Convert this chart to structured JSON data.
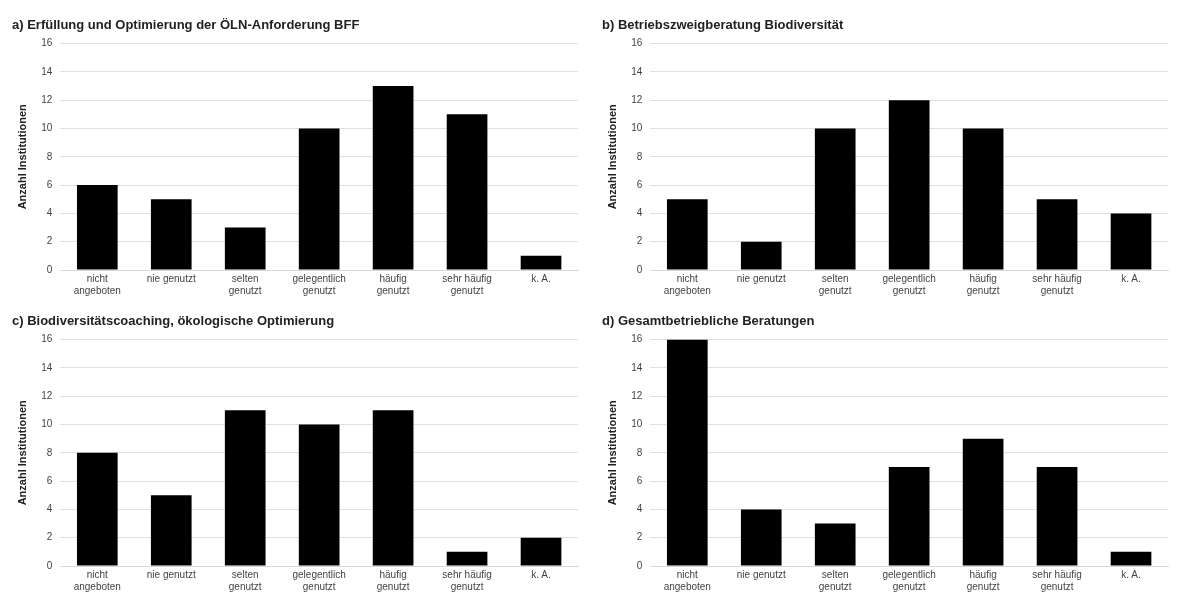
{
  "chart_data": [
    {
      "type": "bar",
      "title": "a) Erfüllung und Optimierung der ÖLN-Anforderung BFF",
      "ylabel": "Anzahl Institutionen",
      "categories": [
        "nicht angeboten",
        "nie genutzt",
        "selten genutzt",
        "gelegentlich genutzt",
        "häufig genutzt",
        "sehr häufig genutzt",
        "k. A."
      ],
      "values": [
        6,
        5,
        3,
        10,
        13,
        11,
        1
      ],
      "color": "#000000",
      "ylim": [
        0,
        16
      ],
      "yticks": [
        0,
        2,
        4,
        6,
        8,
        10,
        12,
        14,
        16
      ],
      "grid": "y",
      "legend": false
    },
    {
      "type": "bar",
      "title": "b) Betriebszweigberatung Biodiversität",
      "ylabel": "Anzahl Institutionen",
      "categories": [
        "nicht angeboten",
        "nie genutzt",
        "selten genutzt",
        "gelegentlich genutzt",
        "häufig genutzt",
        "sehr häufig genutzt",
        "k. A."
      ],
      "values": [
        5,
        2,
        10,
        12,
        10,
        5,
        4
      ],
      "color": "#000000",
      "ylim": [
        0,
        16
      ],
      "yticks": [
        0,
        2,
        4,
        6,
        8,
        10,
        12,
        14,
        16
      ],
      "grid": "y",
      "legend": false
    },
    {
      "type": "bar",
      "title": "c) Biodiversitätscoaching, ökologische Optimierung",
      "ylabel": "Anzahl Institutionen",
      "categories": [
        "nicht angeboten",
        "nie genutzt",
        "selten genutzt",
        "gelegentlich genutzt",
        "häufig genutzt",
        "sehr häufig genutzt",
        "k. A."
      ],
      "values": [
        8,
        5,
        11,
        10,
        11,
        1,
        2
      ],
      "color": "#000000",
      "ylim": [
        0,
        16
      ],
      "yticks": [
        0,
        2,
        4,
        6,
        8,
        10,
        12,
        14,
        16
      ],
      "grid": "y",
      "legend": false
    },
    {
      "type": "bar",
      "title": "d) Gesamtbetriebliche Beratungen",
      "ylabel": "Anzahl Institutionen",
      "categories": [
        "nicht angeboten",
        "nie genutzt",
        "selten genutzt",
        "gelegentlich genutzt",
        "häufig genutzt",
        "sehr häufig genutzt",
        "k. A."
      ],
      "values": [
        16,
        4,
        3,
        7,
        9,
        7,
        1
      ],
      "color": "#000000",
      "ylim": [
        0,
        16
      ],
      "yticks": [
        0,
        2,
        4,
        6,
        8,
        10,
        12,
        14,
        16
      ],
      "grid": "y",
      "legend": false
    }
  ]
}
